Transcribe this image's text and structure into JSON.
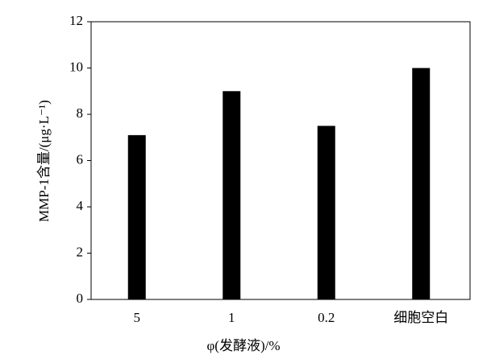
{
  "chart_data": {
    "type": "bar",
    "x_label": "φ(发酵液)/%",
    "y_label": "MMP-1含量/(μg·L⁻¹)",
    "categories": [
      "5",
      "1",
      "0.2",
      "细胞空白"
    ],
    "values": [
      7.1,
      9.0,
      7.5,
      10.0
    ],
    "color": "#000000",
    "ylim": [
      0,
      12
    ],
    "yticks": [
      0,
      2,
      4,
      6,
      8,
      10,
      12
    ]
  }
}
